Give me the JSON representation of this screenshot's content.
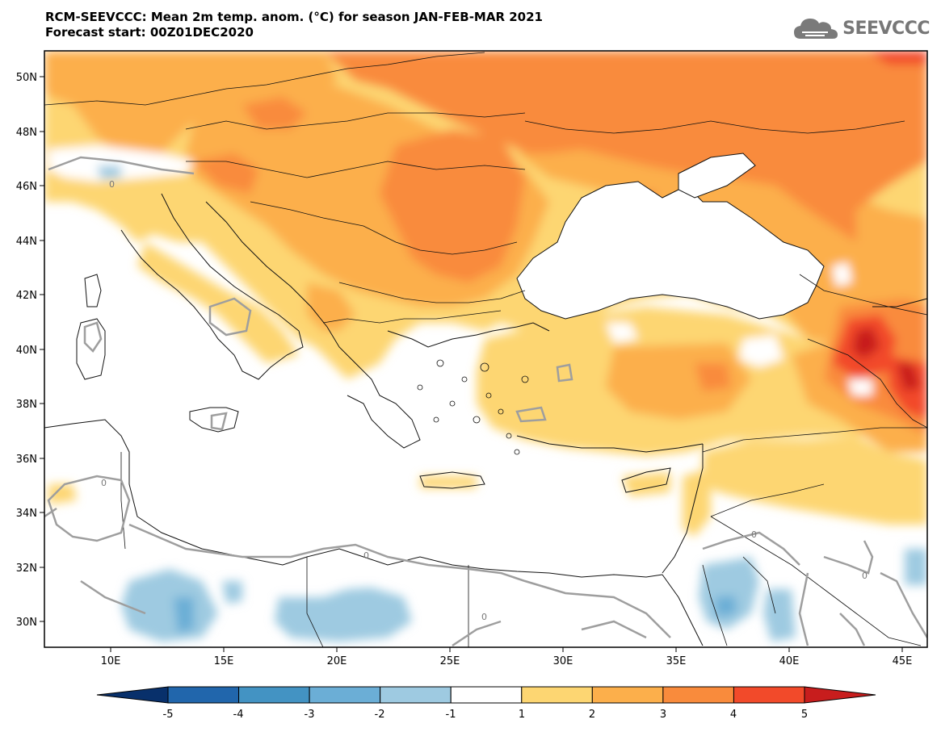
{
  "header": {
    "title_line1": "RCM-SEEVCCC: Mean 2m temp. anom. (°C) for season JAN-FEB-MAR 2021",
    "title_line2": "Forecast start: 00Z01DEC2020",
    "logo_text": "SEEVCCC"
  },
  "map": {
    "lon_range": [
      7,
      46
    ],
    "lat_range": [
      29,
      51
    ],
    "lon_ticks": [
      "10E",
      "15E",
      "20E",
      "25E",
      "30E",
      "35E",
      "40E",
      "45E"
    ],
    "lat_ticks": [
      "50N",
      "48N",
      "46N",
      "44N",
      "42N",
      "40N",
      "38N",
      "36N",
      "34N",
      "32N",
      "30N"
    ],
    "contour_label": "0"
  },
  "colorbar": {
    "labels": [
      "-5",
      "-4",
      "-3",
      "-2",
      "-1",
      "1",
      "2",
      "3",
      "4",
      "5"
    ],
    "colors": [
      "#08306b",
      "#2166ac",
      "#4393c3",
      "#6baed6",
      "#9ecae1",
      "#ffffff",
      "#fdd672",
      "#fcaf4b",
      "#f98b3c",
      "#f24a2a",
      "#c81d1d"
    ]
  }
}
